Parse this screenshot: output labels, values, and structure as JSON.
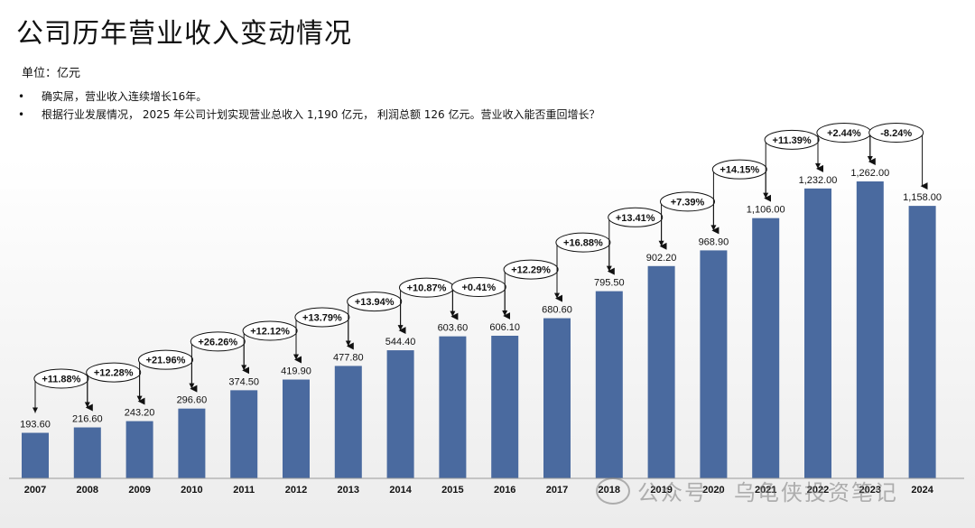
{
  "page": {
    "title": "公司历年营业收入变动情况",
    "unit": "单位：亿元",
    "bullets": [
      "确实屌，营业收入连续增长16年。",
      "根据行业发展情况， 2025 年公司计划实现营业总收入 1,190 亿元， 利润总额 126 亿元。营业收入能否重回增长？"
    ],
    "bullet_marker": "•",
    "watermark": "公众号 · 乌龟侠投资笔记",
    "wm_icon": "wechat-icon"
  },
  "chart_data": {
    "type": "bar",
    "title": "",
    "xlabel": "",
    "ylabel": "",
    "ylim": [
      0,
      1400
    ],
    "grid": false,
    "bar_color": "#4a6a9f",
    "categories": [
      "2007",
      "2008",
      "2009",
      "2010",
      "2011",
      "2012",
      "2013",
      "2014",
      "2015",
      "2016",
      "2017",
      "2018",
      "2019",
      "2020",
      "2021",
      "2022",
      "2023",
      "2024"
    ],
    "values": [
      193.6,
      216.6,
      243.2,
      296.6,
      374.5,
      419.9,
      477.8,
      544.4,
      603.6,
      606.1,
      680.6,
      795.5,
      902.2,
      968.9,
      1106.0,
      1232.0,
      1262.0,
      1158.0
    ],
    "value_labels": [
      "193.60",
      "216.60",
      "243.20",
      "296.60",
      "374.50",
      "419.90",
      "477.80",
      "544.40",
      "603.60",
      "606.10",
      "680.60",
      "795.50",
      "902.20",
      "968.90",
      "1,106.00",
      "1,232.00",
      "1,262.00",
      "1,158.00"
    ],
    "growth_labels": [
      "+11.88%",
      "+12.28%",
      "+21.96%",
      "+26.26%",
      "+12.12%",
      "+13.79%",
      "+13.94%",
      "+10.87%",
      "+0.41%",
      "+12.29%",
      "+16.88%",
      "+13.41%",
      "+7.39%",
      "+14.15%",
      "+11.39%",
      "+2.44%",
      "-8.24%"
    ]
  }
}
